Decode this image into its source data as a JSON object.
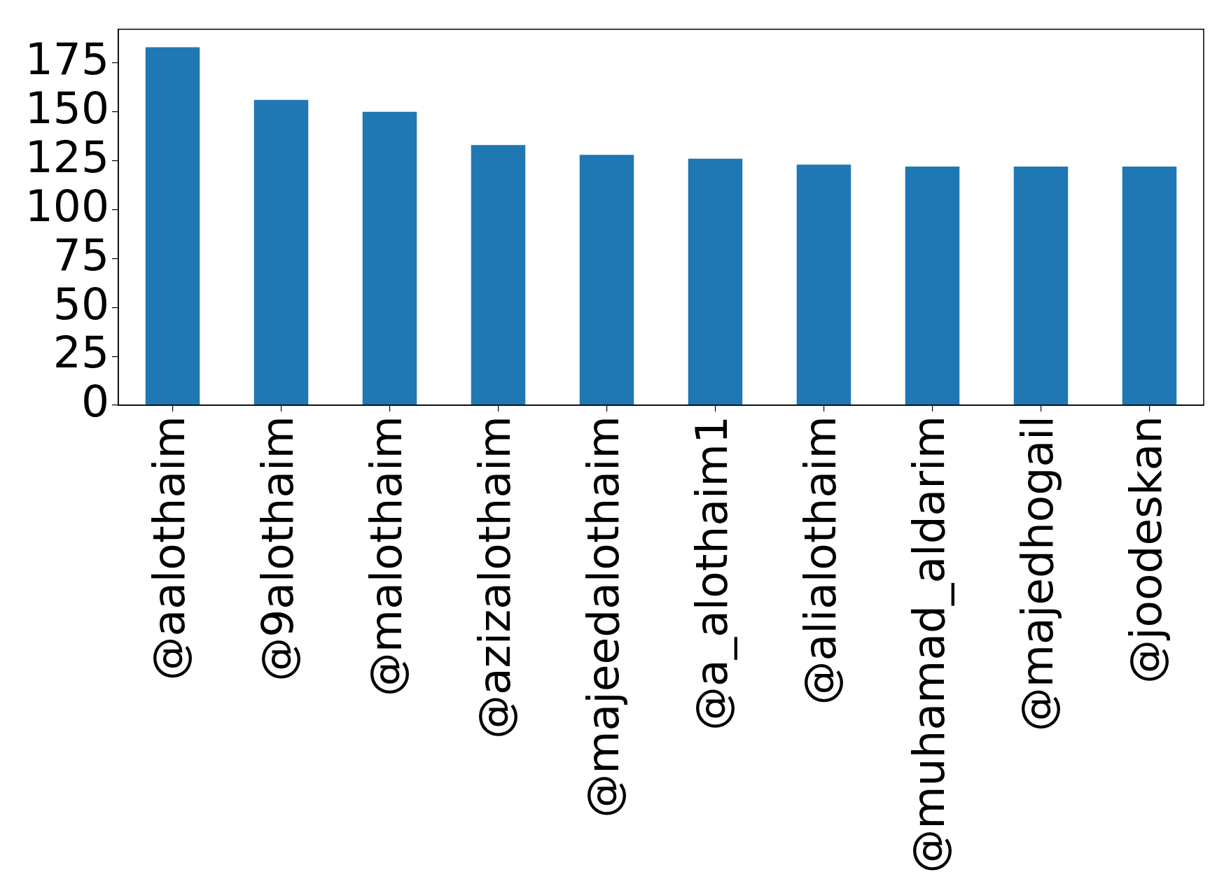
{
  "chart_data": {
    "type": "bar",
    "categories": [
      "@aalothaim",
      "@9alothaim",
      "@malothaim",
      "@azizalothaim",
      "@majeedalothaim",
      "@a_alothaim1",
      "@alialothaim",
      "@muhamad_aldarim",
      "@majedhogail",
      "@joodeskan"
    ],
    "values": [
      183,
      156,
      150,
      133,
      128,
      126,
      123,
      122,
      122,
      122
    ],
    "color": "#1f77b4",
    "ylim": [
      0,
      192.15
    ],
    "yticks": [
      0,
      25,
      50,
      75,
      100,
      125,
      150,
      175
    ]
  }
}
